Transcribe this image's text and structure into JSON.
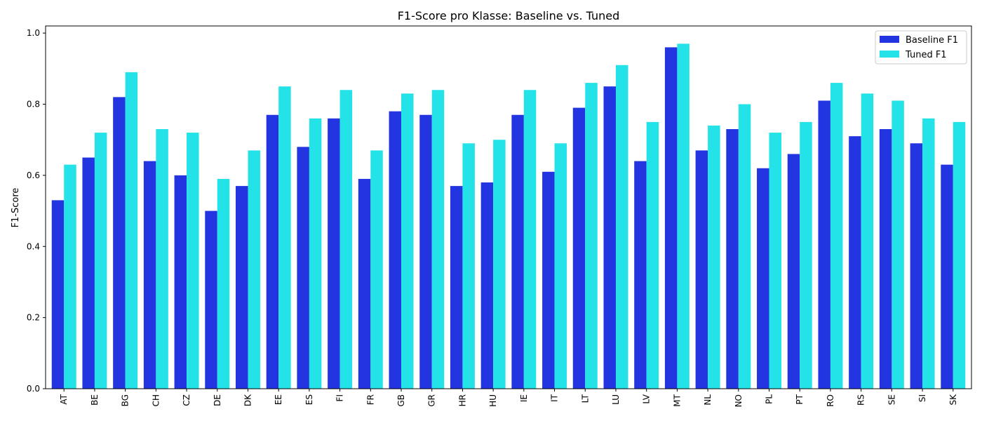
{
  "chart_data": {
    "type": "bar",
    "title": "F1-Score pro Klasse: Baseline vs. Tuned",
    "xlabel": "",
    "ylabel": "F1-Score",
    "ylim": [
      0,
      1.02
    ],
    "yticks": [
      "0.0",
      "0.2",
      "0.4",
      "0.6",
      "0.8",
      "1.0"
    ],
    "grid": false,
    "legend_position": "top-right",
    "categories": [
      "AT",
      "BE",
      "BG",
      "CH",
      "CZ",
      "DE",
      "DK",
      "EE",
      "ES",
      "FI",
      "FR",
      "GB",
      "GR",
      "HR",
      "HU",
      "IE",
      "IT",
      "LT",
      "LU",
      "LV",
      "MT",
      "NL",
      "NO",
      "PL",
      "PT",
      "RO",
      "RS",
      "SE",
      "SI",
      "SK"
    ],
    "series": [
      {
        "name": "Baseline F1",
        "color": "#2335e0",
        "values": [
          0.53,
          0.65,
          0.82,
          0.64,
          0.6,
          0.5,
          0.57,
          0.77,
          0.68,
          0.76,
          0.59,
          0.78,
          0.77,
          0.57,
          0.58,
          0.77,
          0.61,
          0.79,
          0.85,
          0.64,
          0.96,
          0.67,
          0.73,
          0.62,
          0.66,
          0.81,
          0.71,
          0.73,
          0.69,
          0.63
        ]
      },
      {
        "name": "Tuned F1",
        "color": "#24e3e8",
        "values": [
          0.63,
          0.72,
          0.89,
          0.73,
          0.72,
          0.59,
          0.67,
          0.85,
          0.76,
          0.84,
          0.67,
          0.83,
          0.84,
          0.69,
          0.7,
          0.84,
          0.69,
          0.86,
          0.91,
          0.75,
          0.97,
          0.74,
          0.8,
          0.72,
          0.75,
          0.86,
          0.83,
          0.81,
          0.76,
          0.75
        ]
      }
    ]
  }
}
